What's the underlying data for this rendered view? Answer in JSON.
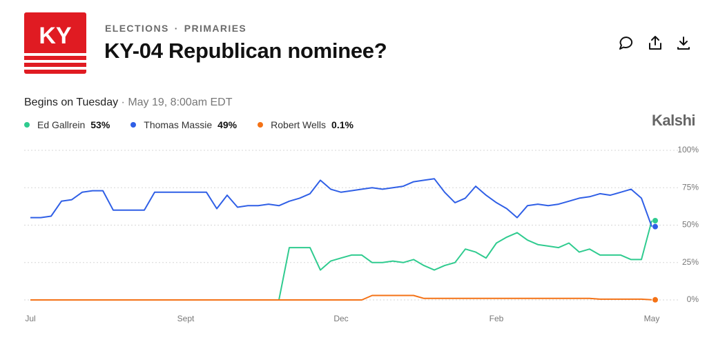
{
  "page": {
    "logo": "KY",
    "breadcrumb": [
      "ELECTIONS",
      "PRIMARIES"
    ],
    "subtitle": "Begins on Tuesday",
    "schedule": "May 19, 8:00am EDT",
    "brand": "Kalshi"
  },
  "chart_data": {
    "type": "line",
    "title": "KY-04 Republican nominee?",
    "categories": [
      "Jul",
      null,
      null,
      null,
      null,
      null,
      null,
      null,
      null,
      null,
      null,
      null,
      null,
      null,
      null,
      "Sept",
      null,
      null,
      null,
      null,
      null,
      null,
      null,
      null,
      null,
      null,
      null,
      null,
      null,
      null,
      "Dec",
      null,
      null,
      null,
      null,
      null,
      null,
      null,
      null,
      null,
      null,
      null,
      null,
      null,
      null,
      "Feb",
      null,
      null,
      null,
      null,
      null,
      null,
      null,
      null,
      null,
      null,
      null,
      null,
      null,
      null,
      "May"
    ],
    "series": [
      {
        "name": "Ed Gallrein",
        "legend_value": "53%",
        "color": "#2fcb8f",
        "values": [
          0,
          0,
          0,
          0,
          0,
          0,
          0,
          0,
          0,
          0,
          0,
          0,
          0,
          0,
          0,
          0,
          0,
          0,
          0,
          0,
          0,
          0,
          0,
          0,
          0,
          35,
          35,
          35,
          20,
          26,
          28,
          30,
          30,
          25,
          25,
          26,
          25,
          27,
          23,
          20,
          23,
          25,
          34,
          32,
          28,
          38,
          42,
          45,
          40,
          37,
          36,
          35,
          38,
          32,
          34,
          30,
          30,
          30,
          27,
          27,
          53
        ]
      },
      {
        "name": "Thomas Massie",
        "legend_value": "49%",
        "color": "#2f5fe6",
        "values": [
          55,
          55,
          56,
          66,
          67,
          72,
          73,
          73,
          60,
          60,
          60,
          60,
          72,
          72,
          72,
          72,
          72,
          72,
          61,
          70,
          62,
          63,
          63,
          64,
          63,
          66,
          68,
          71,
          80,
          74,
          72,
          73,
          74,
          75,
          74,
          75,
          76,
          79,
          80,
          81,
          72,
          65,
          68,
          76,
          70,
          65,
          61,
          55,
          63,
          64,
          63,
          64,
          66,
          68,
          69,
          71,
          70,
          72,
          74,
          68,
          49
        ]
      },
      {
        "name": "Robert Wells",
        "legend_value": "0.1%",
        "color": "#f47216",
        "values": [
          0,
          0,
          0,
          0,
          0,
          0,
          0,
          0,
          0,
          0,
          0,
          0,
          0,
          0,
          0,
          0,
          0,
          0,
          0,
          0,
          0,
          0,
          0,
          0,
          0,
          0,
          0,
          0,
          0,
          0,
          0,
          0,
          0,
          3,
          3,
          3,
          3,
          3,
          1,
          1,
          1,
          1,
          1,
          1,
          1,
          1,
          1,
          1,
          1,
          1,
          1,
          1,
          1,
          1,
          1,
          0.5,
          0.5,
          0.5,
          0.5,
          0.5,
          0.1
        ]
      }
    ],
    "ylim": [
      0,
      100
    ],
    "yticks": [
      {
        "value": 0,
        "label": "0%"
      },
      {
        "value": 25,
        "label": "25%"
      },
      {
        "value": 50,
        "label": "50%"
      },
      {
        "value": 75,
        "label": "75%"
      },
      {
        "value": 100,
        "label": "100%"
      }
    ],
    "grid": true
  }
}
